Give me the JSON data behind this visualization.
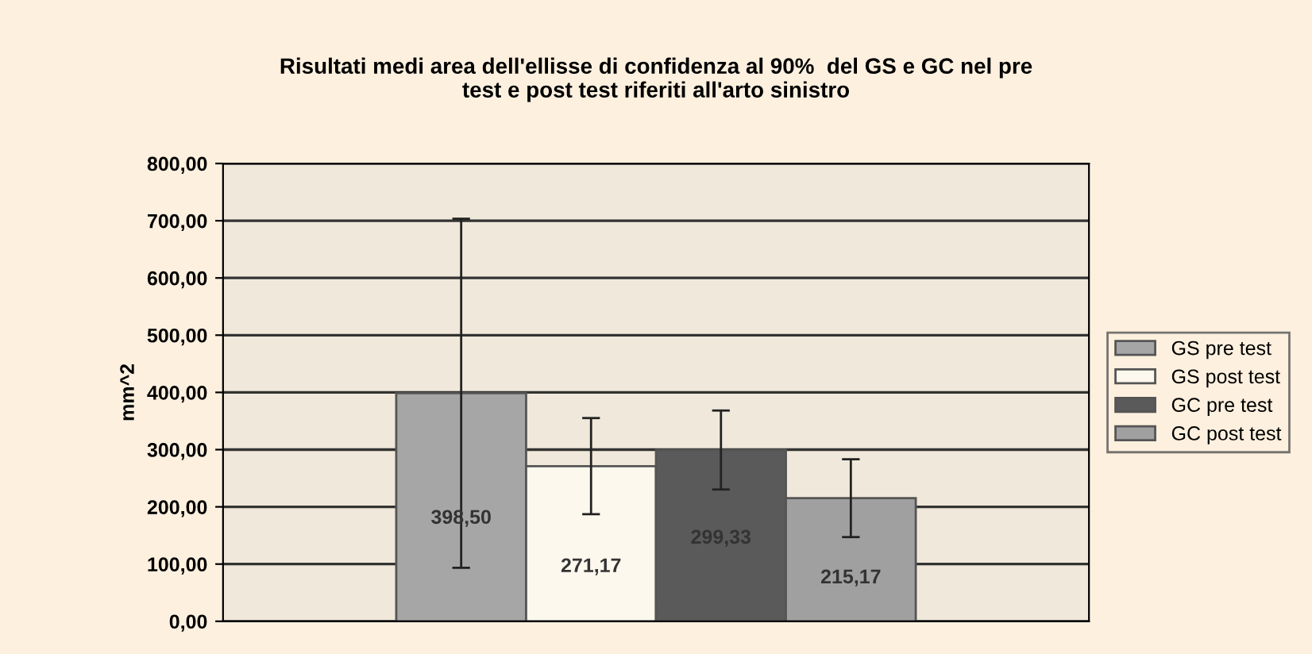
{
  "chart_data": {
    "type": "bar",
    "title": "Risultati medi area dell'ellisse di confidenza al 90%  del GS e GC nel pre\ntest e post test riferiti all'arto sinistro",
    "ylabel": "mm^2",
    "categories": [
      null
    ],
    "series": [
      {
        "name": "GS pre test",
        "color": "#a6a6a6",
        "values": [
          398.5
        ],
        "errors": [
          305
        ],
        "value_labels": [
          "398,50"
        ]
      },
      {
        "name": "GS post test",
        "color": "#fdf8ee",
        "values": [
          271.17
        ],
        "errors": [
          84
        ],
        "value_labels": [
          "271,17"
        ]
      },
      {
        "name": "GC pre test",
        "color": "#5a5a5a",
        "values": [
          299.33
        ],
        "errors": [
          69
        ],
        "value_labels": [
          "299,33"
        ]
      },
      {
        "name": "GC post test",
        "color": "#a0a0a0",
        "values": [
          215.17
        ],
        "errors": [
          68
        ],
        "value_labels": [
          "215,17"
        ]
      }
    ],
    "ylim": [
      0,
      800
    ],
    "yticks": [
      {
        "value": 0,
        "label": "0,00"
      },
      {
        "value": 100,
        "label": "100,00"
      },
      {
        "value": 200,
        "label": "200,00"
      },
      {
        "value": 300,
        "label": "300,00"
      },
      {
        "value": 400,
        "label": "400,00"
      },
      {
        "value": 500,
        "label": "500,00"
      },
      {
        "value": 600,
        "label": "600,00"
      },
      {
        "value": 700,
        "label": "700,00"
      },
      {
        "value": 800,
        "label": "800,00"
      }
    ],
    "grid": "y",
    "legend": "right"
  }
}
